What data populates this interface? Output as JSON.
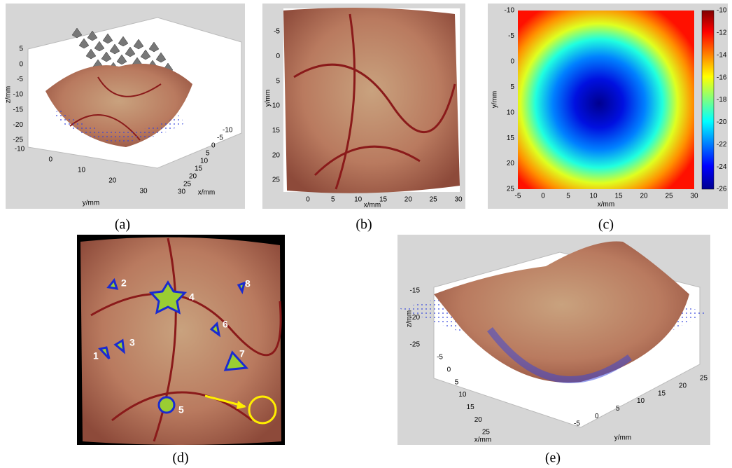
{
  "panels": [
    {
      "caption": "(a)",
      "z_label": "z/mm",
      "x_label": "x/mm",
      "y_label": "y/mm",
      "z_ticks": [
        5,
        0,
        -5,
        -10,
        -15,
        -20,
        -25
      ],
      "y_ticks": [
        -10,
        0,
        10,
        20,
        30
      ],
      "x_ticks": [
        -10,
        -5,
        0,
        5,
        10,
        15,
        20,
        25,
        30
      ]
    },
    {
      "caption": "(b)",
      "x_label": "x/mm",
      "y_label": "y/mm",
      "x_ticks": [
        0,
        5,
        10,
        15,
        20,
        25,
        30
      ],
      "y_ticks": [
        -5,
        0,
        5,
        10,
        15,
        20,
        25
      ]
    },
    {
      "caption": "(c)",
      "x_label": "x/mm",
      "y_label": "y/mm",
      "x_ticks": [
        -5,
        0,
        5,
        10,
        15,
        20,
        25,
        30
      ],
      "y_ticks": [
        -10,
        -5,
        0,
        5,
        10,
        15,
        20,
        25
      ],
      "colorbar_ticks": [
        -10,
        -12,
        -14,
        -16,
        -18,
        -20,
        -22,
        -24,
        -26
      ]
    },
    {
      "caption": "(d)",
      "region_labels": [
        "1",
        "2",
        "3",
        "4",
        "5",
        "6",
        "7",
        "8"
      ]
    },
    {
      "caption": "(e)",
      "z_label": "z/mm",
      "x_label": "x/mm",
      "y_label": "y/mm",
      "z_ticks": [
        -15,
        -20,
        -25
      ],
      "x_ticks": [
        -5,
        0,
        5,
        10,
        15,
        20,
        25
      ],
      "y_ticks": [
        -5,
        0,
        5,
        10,
        15,
        20,
        25
      ]
    }
  ]
}
